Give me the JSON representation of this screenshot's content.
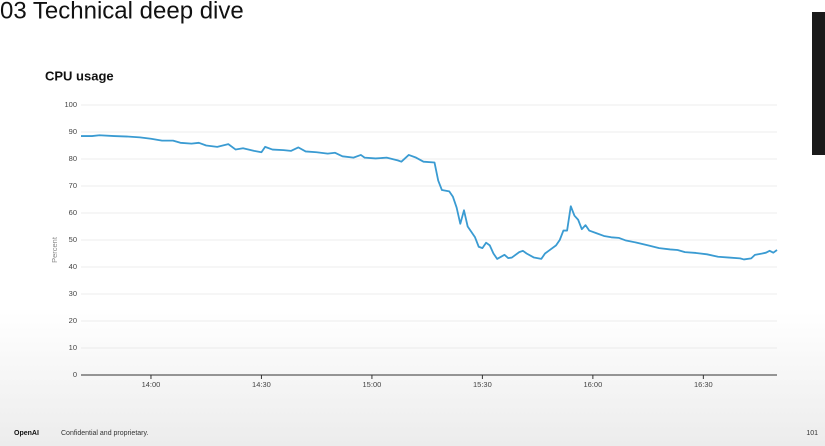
{
  "slide": {
    "title": "03 Technical deep dive",
    "footer": {
      "brand": "OpenAI",
      "note": "Confidential and proprietary.",
      "page": "101"
    }
  },
  "chart_data": {
    "type": "line",
    "title": "CPU usage",
    "y_label": "Percent",
    "color": "#3a9bd2",
    "grid": true,
    "x": [
      "13:41",
      "13:44",
      "13:46",
      "13:50",
      "13:54",
      "13:57",
      "14:00",
      "14:03",
      "14:06",
      "14:08",
      "14:11",
      "14:13",
      "14:15",
      "14:18",
      "14:21",
      "14:23",
      "14:25",
      "14:28",
      "14:30",
      "14:31",
      "14:33",
      "14:36",
      "14:38",
      "14:40",
      "14:42",
      "14:45",
      "14:48",
      "14:50",
      "14:52",
      "14:55",
      "14:57",
      "14:58",
      "15:01",
      "15:04",
      "15:07",
      "15:08",
      "15:10",
      "15:12",
      "15:14",
      "15:17",
      "15:18",
      "15:19",
      "15:21",
      "15:22",
      "15:23",
      "15:24",
      "15:25",
      "15:26",
      "15:28",
      "15:29",
      "15:30",
      "15:31",
      "15:32",
      "15:33",
      "15:34",
      "15:36",
      "15:37",
      "15:38",
      "15:40",
      "15:41",
      "15:42",
      "15:44",
      "15:46",
      "15:47",
      "15:48",
      "15:50",
      "15:51",
      "15:52",
      "15:53",
      "15:54",
      "15:55",
      "15:56",
      "15:57",
      "15:58",
      "15:59",
      "16:01",
      "16:03",
      "16:05",
      "16:07",
      "16:09",
      "16:12",
      "16:15",
      "16:18",
      "16:21",
      "16:23",
      "16:25",
      "16:28",
      "16:31",
      "16:34",
      "16:37",
      "16:40",
      "16:41",
      "16:43",
      "16:44",
      "16:46",
      "16:47",
      "16:48",
      "16:49",
      "16:50"
    ],
    "values": [
      88.5,
      88.5,
      88.8,
      88.5,
      88.3,
      88,
      87.5,
      86.8,
      86.8,
      86,
      85.7,
      86,
      85,
      84.5,
      85.5,
      83.5,
      84,
      83,
      82.5,
      84.5,
      83.5,
      83.3,
      83,
      84.3,
      82.8,
      82.5,
      82,
      82.3,
      81,
      80.5,
      81.5,
      80.5,
      80.2,
      80.5,
      79.5,
      79,
      81.5,
      80.5,
      79,
      78.7,
      72,
      68.5,
      68,
      66,
      62,
      56,
      61,
      55,
      51,
      47.5,
      47,
      49,
      48,
      45,
      43,
      44.5,
      43.3,
      43.5,
      45.5,
      46,
      45,
      43.5,
      43,
      45,
      46,
      48,
      50,
      53.5,
      53.5,
      62.5,
      59,
      57.5,
      54,
      55.5,
      53.5,
      52.5,
      51.5,
      51,
      50.8,
      49.8,
      49,
      48,
      47,
      46.5,
      46.3,
      45.5,
      45.2,
      44.7,
      43.8,
      43.5,
      43.2,
      42.8,
      43.2,
      44.5,
      45,
      45.3,
      46,
      45.3,
      46.3
    ],
    "xlim": [
      "13:41",
      "16:50"
    ],
    "xticks": [
      "14:00",
      "14:30",
      "15:00",
      "15:30",
      "16:00",
      "16:30"
    ],
    "ylim": [
      0,
      100
    ],
    "yticks": [
      0,
      10,
      20,
      30,
      40,
      50,
      60,
      70,
      80,
      90,
      100
    ]
  }
}
